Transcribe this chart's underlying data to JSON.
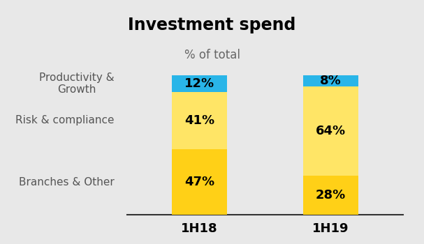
{
  "title": "Investment spend",
  "subtitle": "% of total",
  "categories": [
    "1H18",
    "1H19"
  ],
  "segments": {
    "Productivity & Growth": [
      47,
      28
    ],
    "Risk & compliance": [
      41,
      64
    ],
    "Branches & Other": [
      12,
      8
    ]
  },
  "colors": {
    "Productivity & Growth": "#FFD017",
    "Risk & compliance": "#FFE566",
    "Branches & Other": "#29B5E8"
  },
  "labels": {
    "Productivity & Growth": [
      "47%",
      "28%"
    ],
    "Risk & compliance": [
      "41%",
      "64%"
    ],
    "Branches & Other": [
      "12%",
      "8%"
    ]
  },
  "y_label_texts": [
    "Branches & Other",
    "Risk & compliance",
    "Productivity &\nGrowth"
  ],
  "background_color": "#E8E8E8",
  "bar_width": 0.42,
  "ylim": [
    0,
    105
  ],
  "title_fontsize": 17,
  "subtitle_fontsize": 12,
  "label_fontsize": 13,
  "tick_fontsize": 13,
  "ylabel_fontsize": 11
}
